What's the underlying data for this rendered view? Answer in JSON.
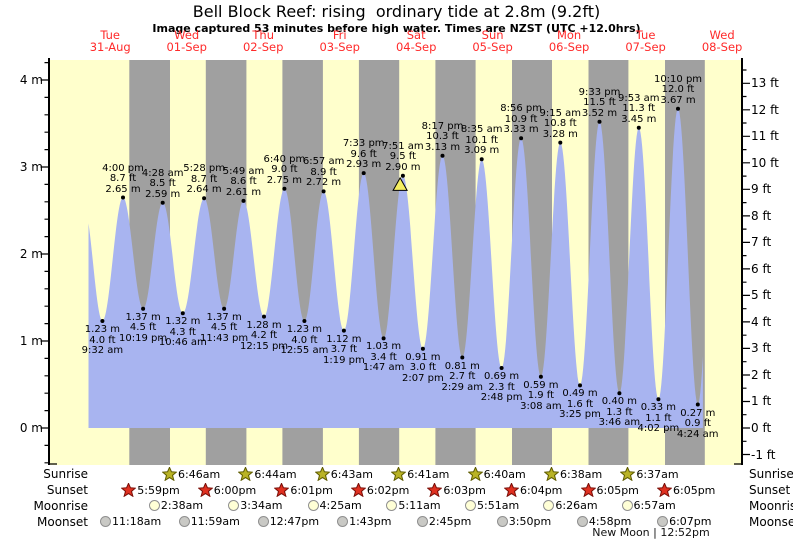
{
  "header": {
    "title": "Bell Block Reef: rising  ordinary tide at 2.8m (9.2ft)",
    "subtitle": "Image captured 53 minutes before high water. Times are NZST (UTC +12.0hrs)"
  },
  "days": [
    {
      "name": "Tue",
      "date": "31-Aug"
    },
    {
      "name": "Wed",
      "date": "01-Sep"
    },
    {
      "name": "Thu",
      "date": "02-Sep"
    },
    {
      "name": "Fri",
      "date": "03-Sep"
    },
    {
      "name": "Sat",
      "date": "04-Sep"
    },
    {
      "name": "Sun",
      "date": "05-Sep"
    },
    {
      "name": "Mon",
      "date": "06-Sep"
    },
    {
      "name": "Tue",
      "date": "07-Sep"
    },
    {
      "name": "Wed",
      "date": "08-Sep"
    }
  ],
  "axes": {
    "left_labels": [
      "4 m",
      "3 m",
      "2 m",
      "1 m",
      "0 m"
    ],
    "left_values": [
      4,
      3,
      2,
      1,
      0
    ],
    "right_labels": [
      "13 ft",
      "12 ft",
      "11 ft",
      "10 ft",
      "9 ft",
      "8 ft",
      "7 ft",
      "6 ft",
      "5 ft",
      "4 ft",
      "3 ft",
      "2 ft",
      "1 ft",
      "0 ft",
      "-1 ft"
    ],
    "right_values": [
      13,
      12,
      11,
      10,
      9,
      8,
      7,
      6,
      5,
      4,
      3,
      2,
      1,
      0,
      -1
    ]
  },
  "chart_data": {
    "type": "area",
    "title": "Bell Block Reef tide curve",
    "x_unit": "time (NZST)",
    "y_unit_left": "m",
    "y_unit_right": "ft",
    "ylim_m": [
      -0.43,
      4.23
    ],
    "ylim_ft": [
      -1,
      13
    ],
    "tide_events": [
      {
        "day": 0,
        "time": "9:32 am",
        "type": "low",
        "m": "1.23",
        "ft": "4.0"
      },
      {
        "day": 0,
        "time": "4:00 pm",
        "type": "high",
        "m": "2.65",
        "ft": "8.7"
      },
      {
        "day": 0,
        "time": "10:19 pm",
        "type": "low",
        "m": "1.37",
        "ft": "4.5"
      },
      {
        "day": 1,
        "time": "4:28 am",
        "type": "high",
        "m": "2.59",
        "ft": "8.5"
      },
      {
        "day": 1,
        "time": "10:46 am",
        "type": "low",
        "m": "1.32",
        "ft": "4.3"
      },
      {
        "day": 1,
        "time": "5:28 pm",
        "type": "high",
        "m": "2.64",
        "ft": "8.7"
      },
      {
        "day": 1,
        "time": "11:43 pm",
        "type": "low",
        "m": "1.37",
        "ft": "4.5"
      },
      {
        "day": 2,
        "time": "5:49 am",
        "type": "high",
        "m": "2.61",
        "ft": "8.6"
      },
      {
        "day": 2,
        "time": "12:15 pm",
        "type": "low",
        "m": "1.28",
        "ft": "4.2"
      },
      {
        "day": 2,
        "time": "6:40 pm",
        "type": "high",
        "m": "2.75",
        "ft": "9.0"
      },
      {
        "day": 3,
        "time": "12:55 am",
        "type": "low",
        "m": "1.23",
        "ft": "4.0"
      },
      {
        "day": 3,
        "time": "6:57 am",
        "type": "high",
        "m": "2.72",
        "ft": "8.9"
      },
      {
        "day": 3,
        "time": "1:19 pm",
        "type": "low",
        "m": "1.12",
        "ft": "3.7"
      },
      {
        "day": 3,
        "time": "7:33 pm",
        "type": "high",
        "m": "2.93",
        "ft": "9.6"
      },
      {
        "day": 4,
        "time": "1:47 am",
        "type": "low",
        "m": "1.03",
        "ft": "3.4"
      },
      {
        "day": 4,
        "time": "7:51 am",
        "type": "high",
        "m": "2.90",
        "ft": "9.5"
      },
      {
        "day": 4,
        "time": "2:07 pm",
        "type": "low",
        "m": "0.91",
        "ft": "3.0"
      },
      {
        "day": 4,
        "time": "8:17 pm",
        "type": "high",
        "m": "3.13",
        "ft": "10.3"
      },
      {
        "day": 5,
        "time": "2:29 am",
        "type": "low",
        "m": "0.81",
        "ft": "2.7"
      },
      {
        "day": 5,
        "time": "8:35 am",
        "type": "high",
        "m": "3.09",
        "ft": "10.1"
      },
      {
        "day": 5,
        "time": "2:48 pm",
        "type": "low",
        "m": "0.69",
        "ft": "2.3"
      },
      {
        "day": 5,
        "time": "8:56 pm",
        "type": "high",
        "m": "3.33",
        "ft": "10.9"
      },
      {
        "day": 6,
        "time": "3:08 am",
        "type": "low",
        "m": "0.59",
        "ft": "1.9"
      },
      {
        "day": 6,
        "time": "9:15 am",
        "type": "high",
        "m": "3.28",
        "ft": "10.8"
      },
      {
        "day": 6,
        "time": "3:25 pm",
        "type": "low",
        "m": "0.49",
        "ft": "1.6"
      },
      {
        "day": 6,
        "time": "9:33 pm",
        "type": "high",
        "m": "3.52",
        "ft": "11.5"
      },
      {
        "day": 7,
        "time": "3:46 am",
        "type": "low",
        "m": "0.40",
        "ft": "1.3"
      },
      {
        "day": 7,
        "time": "9:53 am",
        "type": "high",
        "m": "3.45",
        "ft": "11.3"
      },
      {
        "day": 7,
        "time": "4:02 pm",
        "type": "low",
        "m": "0.33",
        "ft": "1.1"
      },
      {
        "day": 7,
        "time": "10:10 pm",
        "type": "high",
        "m": "3.67",
        "ft": "12.0"
      },
      {
        "day": 8,
        "time": "4:24 am",
        "type": "low",
        "m": "0.27",
        "ft": "0.9"
      }
    ],
    "current_marker": {
      "shape": "triangle",
      "day": 4,
      "high_time": "7:51 am",
      "minutes_before_high": 53,
      "height_m": 2.8
    }
  },
  "sun_moon": {
    "sunrise": {
      "label": "Sunrise",
      "times": [
        {
          "day": 1,
          "time": "6:46am"
        },
        {
          "day": 2,
          "time": "6:44am"
        },
        {
          "day": 3,
          "time": "6:43am"
        },
        {
          "day": 4,
          "time": "6:41am"
        },
        {
          "day": 5,
          "time": "6:40am"
        },
        {
          "day": 6,
          "time": "6:38am"
        },
        {
          "day": 7,
          "time": "6:37am"
        }
      ]
    },
    "sunset": {
      "label": "Sunset",
      "times": [
        {
          "day": 0,
          "time": "5:59pm"
        },
        {
          "day": 1,
          "time": "6:00pm"
        },
        {
          "day": 2,
          "time": "6:01pm"
        },
        {
          "day": 3,
          "time": "6:02pm"
        },
        {
          "day": 4,
          "time": "6:03pm"
        },
        {
          "day": 5,
          "time": "6:04pm"
        },
        {
          "day": 6,
          "time": "6:05pm"
        },
        {
          "day": 7,
          "time": "6:05pm"
        }
      ]
    },
    "moonrise": {
      "label": "Moonrise",
      "times": [
        {
          "day": 1,
          "time": "2:38am"
        },
        {
          "day": 2,
          "time": "3:34am"
        },
        {
          "day": 3,
          "time": "4:25am"
        },
        {
          "day": 4,
          "time": "5:11am"
        },
        {
          "day": 5,
          "time": "5:51am"
        },
        {
          "day": 6,
          "time": "6:26am"
        },
        {
          "day": 7,
          "time": "6:57am"
        }
      ]
    },
    "moonset": {
      "label": "Moonset",
      "times": [
        {
          "day": 0,
          "time": "11:18am"
        },
        {
          "day": 1,
          "time": "11:59am"
        },
        {
          "day": 2,
          "time": "12:47pm"
        },
        {
          "day": 3,
          "time": "1:43pm"
        },
        {
          "day": 4,
          "time": "2:45pm"
        },
        {
          "day": 5,
          "time": "3:50pm"
        },
        {
          "day": 6,
          "time": "4:58pm"
        },
        {
          "day": 7,
          "time": "6:07pm"
        }
      ]
    },
    "new_moon": "New Moon | 12:52pm"
  },
  "colors": {
    "plot_day_bg": "#ffffcc",
    "plot_night_bg": "#a0a0a0",
    "tide_fill": "#a8b4f0",
    "day_label_red": "#ff2a2a",
    "axis": "#000000",
    "sunrise_star": "#b9b325",
    "sunrise_star_border": "#5f5c00",
    "sunset_star": "#e03020",
    "sunset_star_border": "#7a0f08",
    "moonrise_circle": "#ffffd6",
    "moonset_circle": "#c9c9c5",
    "moon_border": "#8f8f8f",
    "marker_triangle": "#f5ef62",
    "extreme_dot": "#000000"
  }
}
